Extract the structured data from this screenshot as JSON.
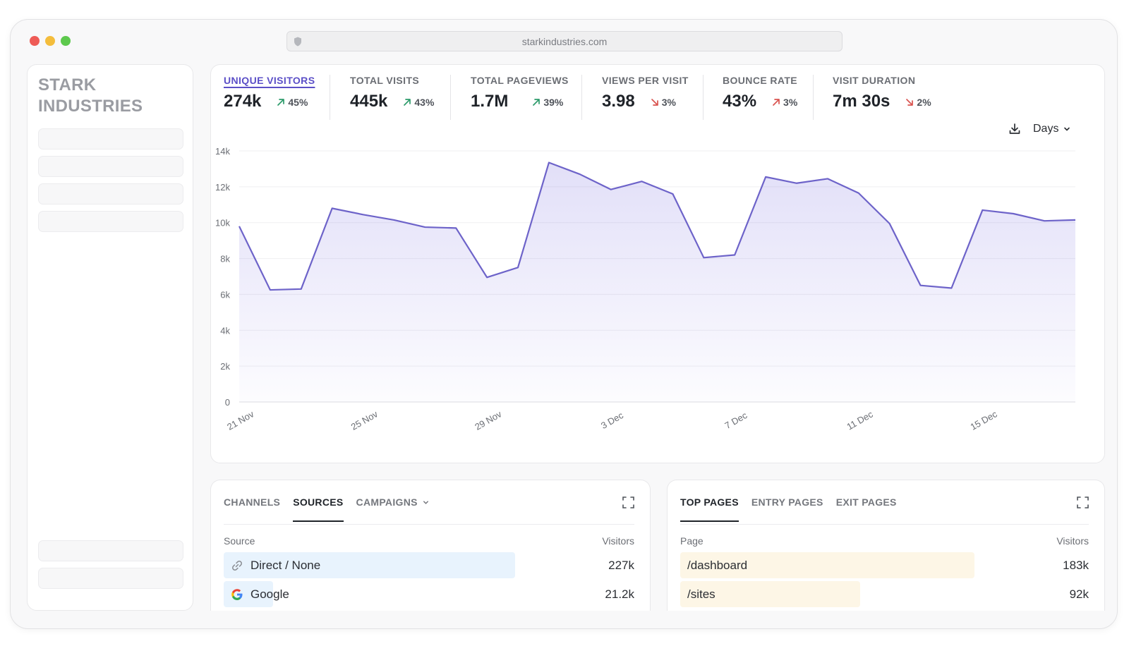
{
  "browser": {
    "url": "starkindustries.com"
  },
  "sidebar": {
    "brand_line1": "STARK",
    "brand_line2": "INDUSTRIES"
  },
  "stats": [
    {
      "label": "UNIQUE VISITORS",
      "value": "274k",
      "change": "45%",
      "direction": "up",
      "active": true
    },
    {
      "label": "TOTAL VISITS",
      "value": "445k",
      "change": "43%",
      "direction": "up",
      "active": false
    },
    {
      "label": "TOTAL PAGEVIEWS",
      "value": "1.7M",
      "change": "39%",
      "direction": "up",
      "active": false
    },
    {
      "label": "VIEWS PER VISIT",
      "value": "3.98",
      "change": "3%",
      "direction": "down",
      "active": false
    },
    {
      "label": "BOUNCE RATE",
      "value": "43%",
      "change": "3%",
      "direction": "up-bad",
      "active": false
    },
    {
      "label": "VISIT DURATION",
      "value": "7m 30s",
      "change": "2%",
      "direction": "down",
      "active": false
    }
  ],
  "chart_controls": {
    "interval_label": "Days"
  },
  "colors": {
    "accent": "#5b4fc7",
    "line": "#6d63c9",
    "up": "#2d9b6b",
    "down": "#d9534f",
    "source_bar": "#e8f3fd",
    "page_bar": "#fdf6e6"
  },
  "chart_data": {
    "type": "area",
    "x": [
      "21 Nov",
      "22 Nov",
      "23 Nov",
      "24 Nov",
      "25 Nov",
      "26 Nov",
      "27 Nov",
      "28 Nov",
      "29 Nov",
      "30 Nov",
      "1 Dec",
      "2 Dec",
      "3 Dec",
      "4 Dec",
      "5 Dec",
      "6 Dec",
      "7 Dec",
      "8 Dec",
      "9 Dec",
      "10 Dec",
      "11 Dec",
      "12 Dec",
      "13 Dec",
      "14 Dec",
      "15 Dec",
      "16 Dec",
      "17 Dec",
      "18 Dec"
    ],
    "y_ticks": [
      "0",
      "2k",
      "4k",
      "6k",
      "8k",
      "10k",
      "12k",
      "14k"
    ],
    "x_tick_labels": [
      "21 Nov",
      "25 Nov",
      "29 Nov",
      "3 Dec",
      "7 Dec",
      "11 Dec",
      "15 Dec"
    ],
    "x_tick_dates": [
      "21 Nov",
      "25 Nov",
      "29 Nov",
      "3 Dec",
      "7 Dec",
      "11 Dec",
      "15 Dec"
    ],
    "ylim": [
      0,
      14000
    ],
    "series": [
      {
        "values": [
          9800,
          6250,
          6300,
          10800,
          10450,
          10150,
          9750,
          9700,
          6950,
          7500,
          13350,
          12700,
          11850,
          12300,
          11600,
          8050,
          8200,
          12550,
          12200,
          12450,
          11650,
          9950,
          6500,
          6350,
          10700,
          10500,
          10100,
          10150
        ]
      }
    ],
    "grid": true,
    "legend": "none"
  },
  "left_panel": {
    "tabs": [
      "CHANNELS",
      "SOURCES",
      "CAMPAIGNS"
    ],
    "active_tab": "SOURCES",
    "col_name": "Source",
    "col_value": "Visitors",
    "rows": [
      {
        "label": "Direct / None",
        "value": "227k",
        "icon": "link-icon",
        "share": 0.71
      },
      {
        "label": "Google",
        "value": "21.2k",
        "icon": "google-icon",
        "share": 0.12
      }
    ]
  },
  "right_panel": {
    "tabs": [
      "TOP PAGES",
      "ENTRY PAGES",
      "EXIT PAGES"
    ],
    "active_tab": "TOP PAGES",
    "col_name": "Page",
    "col_value": "Visitors",
    "rows": [
      {
        "label": "/dashboard",
        "value": "183k",
        "share": 0.72
      },
      {
        "label": "/sites",
        "value": "92k",
        "share": 0.44
      }
    ]
  }
}
